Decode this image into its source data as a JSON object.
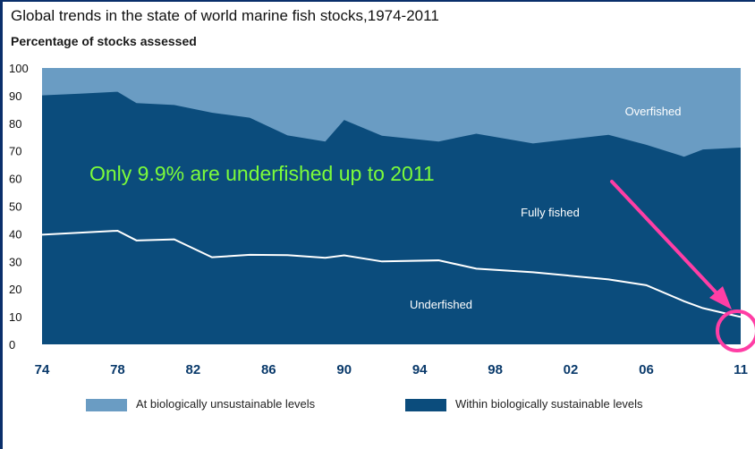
{
  "title": "Global trends in the state of world marine fish stocks,1974-2011",
  "subtitle": "Percentage of stocks assessed",
  "annotation": "Only 9.9% are underfished up to 2011",
  "colors": {
    "overfished": "#6a9cc3",
    "fully_fished": "#0b4c7c",
    "underfished_line": "#ffffff",
    "annotation_text": "#7CFC3A",
    "arrow": "#ff3ea5"
  },
  "legend": {
    "unsustainable": "At biologically unsustainable levels",
    "sustainable": "Within biologically sustainable levels"
  },
  "chart_data": {
    "type": "area",
    "xlabel": "",
    "ylabel": "Percentage of stocks assessed",
    "ylim": [
      0,
      100
    ],
    "xlim": [
      1974,
      2011
    ],
    "y_ticks": [
      "0",
      "10",
      "20",
      "30",
      "40",
      "50",
      "60",
      "70",
      "80",
      "90",
      "100"
    ],
    "x_ticks": [
      {
        "x": 1974,
        "label": "74"
      },
      {
        "x": 1978,
        "label": "78"
      },
      {
        "x": 1982,
        "label": "82"
      },
      {
        "x": 1986,
        "label": "86"
      },
      {
        "x": 1990,
        "label": "90"
      },
      {
        "x": 1994,
        "label": "94"
      },
      {
        "x": 1998,
        "label": "98"
      },
      {
        "x": 2002,
        "label": "02"
      },
      {
        "x": 2006,
        "label": "06"
      },
      {
        "x": 2011,
        "label": "11"
      }
    ],
    "area_labels": {
      "overfished": "Overfished",
      "fully_fished": "Fully fished",
      "underfished": "Underfished"
    },
    "sustainable_upper": {
      "x": [
        1974,
        1976,
        1978,
        1979,
        1981,
        1983,
        1985,
        1987,
        1989,
        1990,
        1992,
        1995,
        1997,
        2000,
        2004,
        2006,
        2008,
        2009,
        2011
      ],
      "y": [
        90.1,
        90.7,
        91.4,
        87.3,
        86.6,
        83.8,
        82.0,
        75.6,
        73.4,
        81.2,
        75.5,
        73.4,
        76.2,
        72.7,
        75.8,
        72.2,
        67.9,
        70.5,
        71.2
      ]
    },
    "underfished": {
      "x": [
        1974,
        1978,
        1979,
        1981,
        1983,
        1985,
        1987,
        1989,
        1990,
        1992,
        1995,
        1997,
        2000,
        2004,
        2006,
        2008,
        2009,
        2011
      ],
      "y": [
        39.7,
        41.1,
        37.6,
        38.0,
        31.5,
        32.4,
        32.3,
        31.3,
        32.2,
        30.0,
        30.4,
        27.4,
        26.1,
        23.5,
        21.4,
        15.6,
        13.1,
        9.9
      ]
    }
  }
}
